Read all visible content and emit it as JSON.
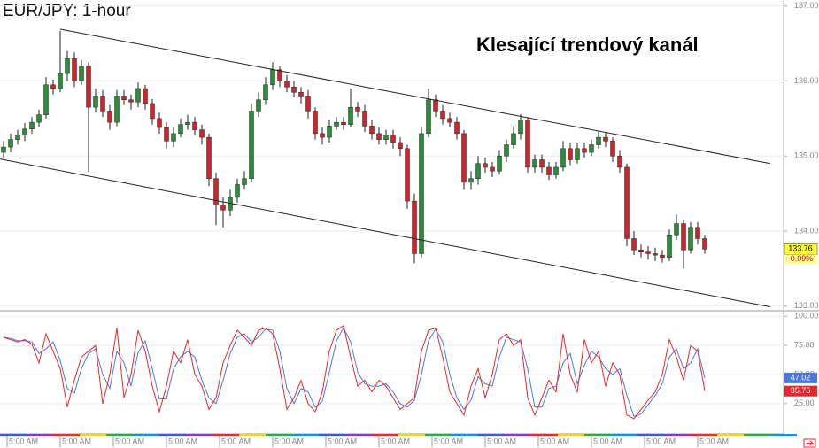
{
  "chart_data": [
    {
      "type": "candlestick",
      "title": "EUR/JPY: 1-hour",
      "annotation": "Klesající trendový kanál",
      "xlim": [
        -0.5,
        109.5
      ],
      "ylim": [
        132.95,
        137.08
      ],
      "grid": true,
      "up_color": "#2e8b3a",
      "down_color": "#c8282d",
      "yticks": [
        {
          "value": 137,
          "label": "137.00"
        },
        {
          "value": 136,
          "label": "136.00"
        },
        {
          "value": 135,
          "label": "135.00"
        },
        {
          "value": 134,
          "label": "134.00"
        },
        {
          "value": 133,
          "label": "133.00"
        }
      ],
      "open": [
        135.05,
        135.12,
        135.22,
        135.28,
        135.36,
        135.45,
        135.55,
        135.95,
        135.9,
        136.1,
        136.3,
        136.0,
        136.2,
        135.65,
        135.8,
        135.6,
        135.45,
        135.8,
        135.75,
        135.72,
        135.9,
        135.7,
        135.5,
        135.38,
        135.2,
        135.3,
        135.42,
        135.45,
        135.35,
        135.25,
        134.7,
        134.35,
        134.28,
        134.45,
        134.62,
        134.7,
        135.6,
        135.75,
        135.95,
        136.15,
        136.0,
        135.92,
        135.85,
        135.8,
        135.6,
        135.3,
        135.25,
        135.4,
        135.45,
        135.42,
        135.65,
        135.6,
        135.4,
        135.3,
        135.22,
        135.28,
        135.18,
        135.1,
        134.4,
        133.7,
        135.3,
        135.75,
        135.6,
        135.5,
        135.45,
        135.3,
        134.65,
        134.7,
        134.9,
        134.85,
        134.8,
        135.0,
        135.15,
        135.3,
        135.48,
        134.85,
        134.95,
        134.85,
        134.75,
        134.85,
        135.1,
        134.95,
        135.1,
        135.05,
        135.15,
        135.25,
        135.2,
        135.0,
        134.85,
        133.9,
        133.75,
        133.72,
        133.7,
        133.68,
        133.65,
        133.95,
        134.1,
        133.75,
        134.05,
        133.9
      ],
      "high": [
        135.2,
        135.3,
        135.35,
        135.44,
        135.52,
        135.62,
        136.05,
        136.02,
        136.67,
        136.4,
        136.38,
        136.28,
        136.25,
        135.9,
        135.88,
        135.68,
        135.88,
        135.88,
        135.82,
        135.98,
        135.95,
        135.76,
        135.58,
        135.45,
        135.38,
        135.5,
        135.55,
        135.52,
        135.42,
        135.3,
        134.78,
        134.45,
        134.55,
        134.7,
        134.8,
        135.7,
        135.85,
        136.05,
        136.25,
        136.2,
        136.08,
        136.0,
        135.92,
        135.88,
        135.65,
        135.38,
        135.48,
        135.52,
        135.52,
        135.9,
        135.72,
        135.68,
        135.48,
        135.38,
        135.35,
        135.35,
        135.25,
        135.15,
        134.5,
        135.38,
        135.9,
        135.82,
        135.68,
        135.58,
        135.52,
        135.35,
        134.8,
        135.0,
        134.98,
        134.92,
        135.08,
        135.22,
        135.4,
        135.56,
        135.52,
        135.02,
        135.02,
        134.92,
        134.92,
        135.2,
        135.18,
        135.18,
        135.18,
        135.22,
        135.33,
        135.32,
        135.25,
        135.08,
        134.9,
        134.0,
        133.82,
        133.8,
        133.78,
        133.75,
        134.02,
        134.22,
        134.15,
        134.12,
        134.12,
        133.95
      ],
      "low": [
        134.98,
        135.05,
        135.15,
        135.2,
        135.3,
        135.38,
        135.5,
        135.82,
        135.85,
        136.0,
        135.92,
        135.95,
        134.79,
        135.58,
        135.52,
        135.35,
        135.4,
        135.68,
        135.62,
        135.65,
        135.62,
        135.42,
        135.3,
        135.1,
        135.12,
        135.25,
        135.35,
        135.28,
        135.15,
        134.6,
        134.08,
        134.05,
        134.2,
        134.38,
        134.55,
        134.65,
        135.52,
        135.68,
        135.88,
        135.92,
        135.85,
        135.78,
        135.7,
        135.5,
        135.22,
        135.15,
        135.18,
        135.35,
        135.35,
        135.38,
        135.52,
        135.32,
        135.22,
        135.15,
        135.15,
        135.1,
        135.0,
        134.3,
        133.57,
        133.65,
        135.25,
        135.52,
        135.42,
        135.38,
        135.22,
        134.55,
        134.55,
        134.62,
        134.78,
        134.72,
        134.75,
        134.92,
        135.1,
        135.22,
        134.78,
        134.78,
        134.78,
        134.68,
        134.7,
        134.8,
        134.88,
        134.9,
        134.98,
        135.0,
        135.1,
        135.12,
        134.92,
        134.78,
        133.8,
        133.68,
        133.65,
        133.62,
        133.6,
        133.58,
        133.6,
        133.88,
        133.5,
        133.7,
        133.82,
        133.7
      ],
      "close": [
        135.12,
        135.22,
        135.28,
        135.36,
        135.45,
        135.55,
        135.95,
        135.9,
        136.1,
        136.3,
        136.0,
        136.2,
        135.65,
        135.8,
        135.6,
        135.45,
        135.8,
        135.75,
        135.72,
        135.9,
        135.7,
        135.5,
        135.38,
        135.2,
        135.3,
        135.42,
        135.45,
        135.35,
        135.25,
        134.7,
        134.35,
        134.28,
        134.45,
        134.62,
        134.7,
        135.6,
        135.75,
        135.95,
        136.15,
        136.0,
        135.92,
        135.85,
        135.8,
        135.6,
        135.3,
        135.25,
        135.4,
        135.45,
        135.42,
        135.65,
        135.6,
        135.4,
        135.3,
        135.22,
        135.28,
        135.18,
        135.1,
        134.4,
        133.7,
        135.3,
        135.75,
        135.6,
        135.5,
        135.45,
        135.3,
        134.65,
        134.7,
        134.9,
        134.85,
        134.8,
        135.0,
        135.15,
        135.3,
        135.48,
        134.85,
        134.95,
        134.85,
        134.75,
        134.85,
        135.1,
        134.95,
        135.1,
        135.05,
        135.15,
        135.25,
        135.2,
        135.0,
        134.85,
        133.9,
        133.75,
        133.72,
        133.7,
        133.68,
        133.65,
        133.95,
        134.1,
        133.75,
        134.05,
        133.9,
        133.76
      ],
      "channel_lines": [
        {
          "x": [
            8,
            108.25
          ],
          "y": [
            136.69,
            134.9
          ]
        },
        {
          "x": [
            -0.5,
            108.25
          ],
          "y": [
            134.96,
            132.99
          ]
        }
      ],
      "price_tag": {
        "value": 133.76,
        "change": {
          "value": -0.09,
          "label": "-0.09%"
        }
      }
    },
    {
      "type": "line",
      "xlim": [
        -0.5,
        109.5
      ],
      "ylim": [
        -1,
        104
      ],
      "grid": true,
      "yticks": [
        {
          "value": 100,
          "label": "100.00"
        },
        {
          "value": 75,
          "label": "75.00"
        },
        {
          "value": 50,
          "label": "50.00"
        },
        {
          "value": 25,
          "label": "25.00"
        }
      ],
      "xticks": [
        {
          "value": 0.5,
          "label": "5:00 AM"
        },
        {
          "value": 8,
          "label": "5:00 AM"
        },
        {
          "value": 15.5,
          "label": "5:00 AM"
        },
        {
          "value": 23,
          "label": "5:00 AM"
        },
        {
          "value": 30.5,
          "label": "5:00 AM"
        },
        {
          "value": 38,
          "label": "5:00 AM"
        },
        {
          "value": 45.5,
          "label": "5:00 AM"
        },
        {
          "value": 53,
          "label": "5:00 AM"
        },
        {
          "value": 60.5,
          "label": "5:00 AM"
        },
        {
          "value": 68,
          "label": "5:00 AM"
        },
        {
          "value": 75.5,
          "label": "5:00 AM"
        },
        {
          "value": 83,
          "label": "5:00 AM"
        },
        {
          "value": 90.5,
          "label": "5:00 AM"
        },
        {
          "value": 98,
          "label": "5:00 AM"
        }
      ],
      "series": [
        {
          "color": "#4a78e0",
          "values": [
            82,
            81,
            79,
            79,
            78,
            68,
            72,
            78,
            62,
            38,
            34,
            55,
            68,
            72,
            50,
            38,
            70,
            60,
            40,
            69,
            79,
            55,
            29,
            29,
            55,
            65,
            70,
            65,
            45,
            30,
            25,
            45,
            68,
            82,
            85,
            78,
            82,
            89,
            88,
            70,
            38,
            25,
            38,
            35,
            22,
            27,
            52,
            79,
            90,
            78,
            52,
            42,
            40,
            40,
            42,
            35,
            25,
            22,
            28,
            50,
            79,
            89,
            78,
            50,
            30,
            20,
            28,
            48,
            42,
            40,
            65,
            82,
            80,
            78,
            55,
            22,
            22,
            38,
            40,
            60,
            68,
            42,
            58,
            70,
            65,
            55,
            50,
            55,
            32,
            14,
            16,
            24,
            32,
            42,
            65,
            72,
            55,
            60,
            72,
            47.02
          ]
        },
        {
          "color": "#e8262b",
          "values": [
            82,
            80,
            78,
            80,
            76,
            60,
            85,
            70,
            55,
            22,
            45,
            65,
            70,
            75,
            25,
            50,
            90,
            30,
            50,
            88,
            70,
            40,
            18,
            40,
            70,
            60,
            80,
            50,
            40,
            20,
            30,
            60,
            75,
            88,
            82,
            75,
            88,
            90,
            85,
            55,
            20,
            30,
            45,
            25,
            18,
            35,
            70,
            88,
            92,
            65,
            40,
            45,
            35,
            45,
            40,
            30,
            20,
            25,
            30,
            70,
            88,
            90,
            65,
            35,
            25,
            15,
            40,
            55,
            30,
            50,
            80,
            85,
            75,
            80,
            30,
            15,
            30,
            45,
            35,
            85,
            50,
            35,
            80,
            60,
            70,
            40,
            60,
            50,
            15,
            12,
            20,
            28,
            35,
            50,
            80,
            65,
            45,
            75,
            70,
            35.76
          ]
        }
      ]
    }
  ]
}
